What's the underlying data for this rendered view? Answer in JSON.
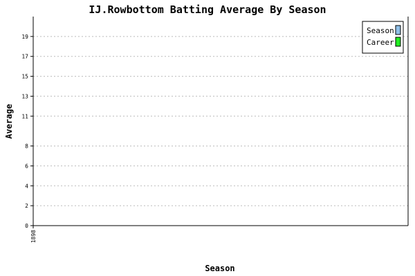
{
  "chart_data": {
    "type": "bar",
    "title": "IJ.Rowbottom Batting Average By Season",
    "xlabel": "Season",
    "ylabel": "Average",
    "ylim": [
      0,
      21
    ],
    "y_ticks": [
      0,
      2,
      4,
      6,
      8,
      11,
      13,
      15,
      17,
      19
    ],
    "grid": true,
    "categories": [
      "1898"
    ],
    "series": [
      {
        "name": "Season",
        "color": "#8fbfe8",
        "values": [
          0
        ]
      },
      {
        "name": "Career",
        "color": "#22ee22",
        "values": [
          0
        ]
      }
    ],
    "legend_position": "top-right"
  }
}
